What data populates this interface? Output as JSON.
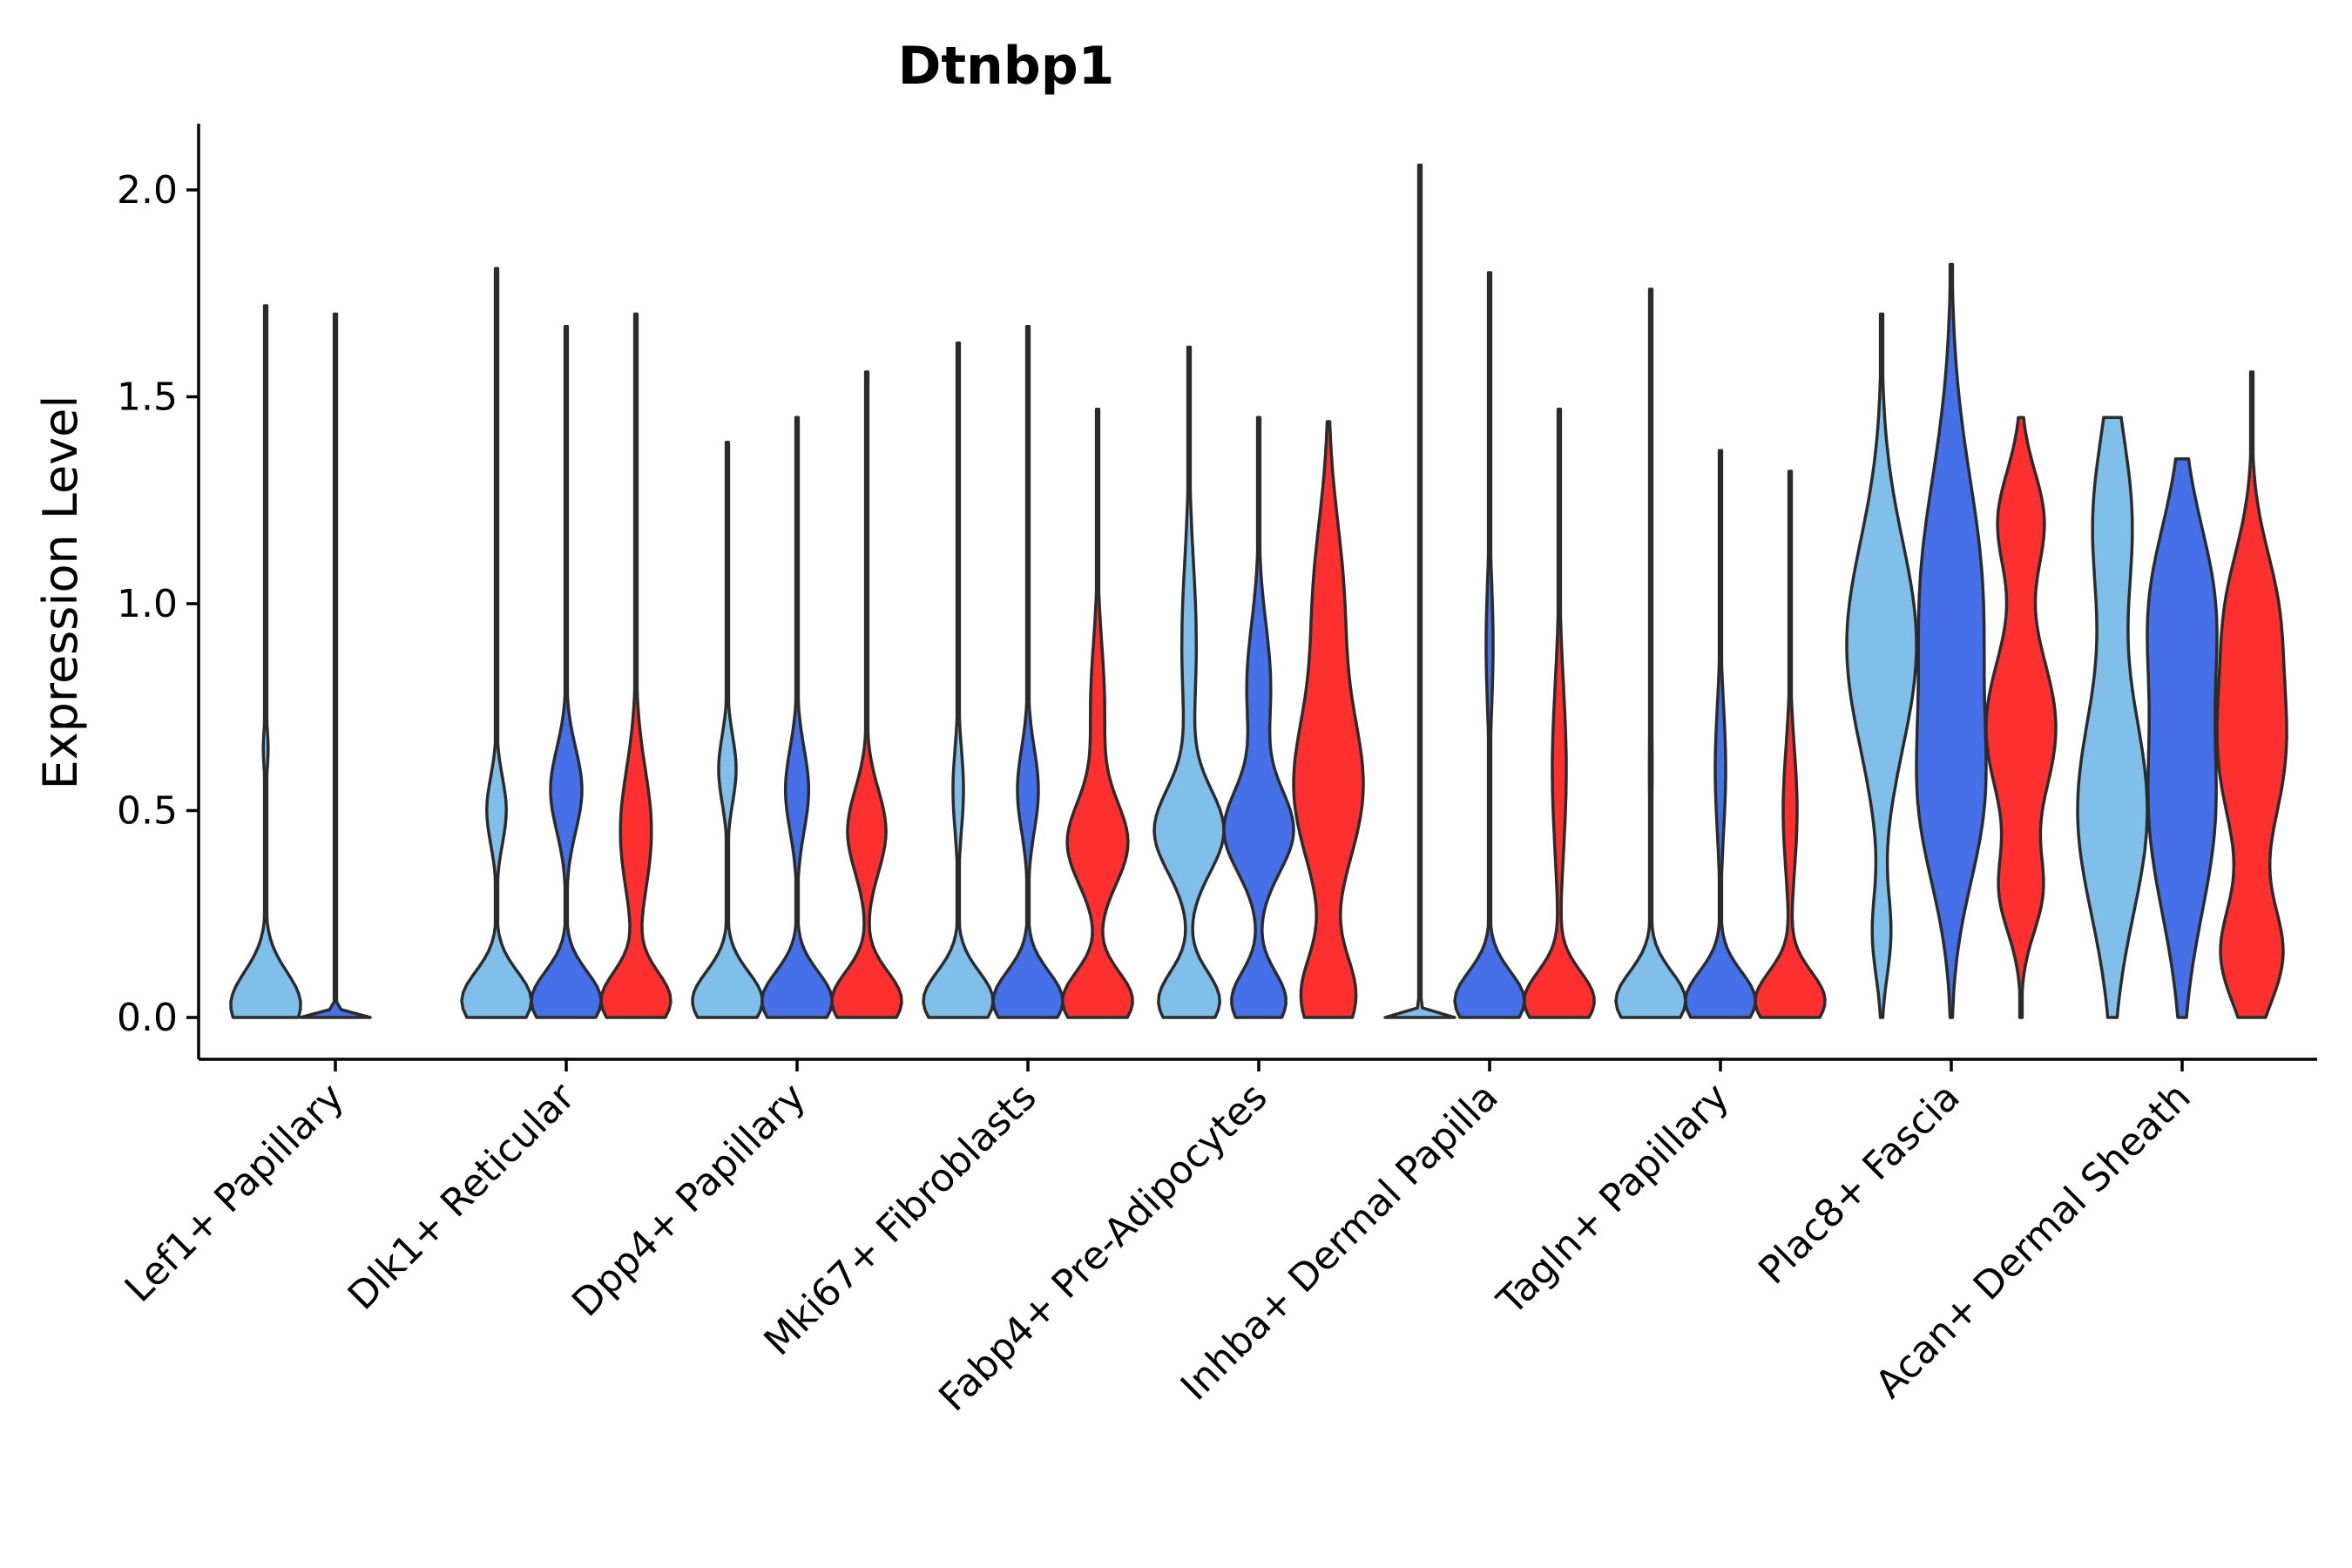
{
  "chart_data": {
    "type": "violin",
    "title": "Dtnbp1",
    "xlabel": "",
    "ylabel": "Expression Level",
    "ylim": [
      -0.1,
      2.15
    ],
    "yticks": [
      "0.0",
      "0.5",
      "1.0",
      "1.5",
      "2.0"
    ],
    "ytick_values": [
      0.0,
      0.5,
      1.0,
      1.5,
      2.0
    ],
    "categories": [
      "Lef1+ Papillary",
      "Dlk1+ Reticular",
      "Dpp4+ Papillary",
      "Mki67+ Fibroblasts",
      "Fabp4+ Pre-Adipocytes",
      "Inhba+ Dermal Papilla",
      "Tagln+ Papillary",
      "Plac8+ Fascia",
      "Acan+ Dermal Sheath"
    ],
    "series_colors": [
      "#7fbfea",
      "#4570e8",
      "#fd2f2f"
    ],
    "violins": [
      {
        "category": "Lef1+ Papillary",
        "sub": 0,
        "max": 1.72,
        "peaks": [
          [
            0.03,
            1.0,
            0.08
          ],
          [
            0.65,
            0.07,
            0.05
          ]
        ]
      },
      {
        "category": "Lef1+ Papillary",
        "sub": 1,
        "max": 1.7,
        "peaks": [
          [
            0.0,
            1.0,
            0.01
          ]
        ]
      },
      {
        "category": "Dlk1+ Reticular",
        "sub": 0,
        "max": 1.81,
        "peaks": [
          [
            0.04,
            1.0,
            0.07
          ],
          [
            0.5,
            0.28,
            0.08
          ]
        ]
      },
      {
        "category": "Dlk1+ Reticular",
        "sub": 1,
        "max": 1.67,
        "peaks": [
          [
            0.04,
            1.0,
            0.07
          ],
          [
            0.55,
            0.45,
            0.1
          ]
        ]
      },
      {
        "category": "Dlk1+ Reticular",
        "sub": 2,
        "max": 1.7,
        "peaks": [
          [
            0.04,
            1.0,
            0.07
          ],
          [
            0.45,
            0.45,
            0.15
          ]
        ]
      },
      {
        "category": "Dpp4+ Papillary",
        "sub": 0,
        "max": 1.39,
        "peaks": [
          [
            0.04,
            1.0,
            0.07
          ],
          [
            0.6,
            0.25,
            0.08
          ]
        ]
      },
      {
        "category": "Dpp4+ Papillary",
        "sub": 1,
        "max": 1.45,
        "peaks": [
          [
            0.04,
            1.0,
            0.07
          ],
          [
            0.55,
            0.33,
            0.1
          ]
        ]
      },
      {
        "category": "Dpp4+ Papillary",
        "sub": 2,
        "max": 1.56,
        "peaks": [
          [
            0.04,
            1.0,
            0.07
          ],
          [
            0.45,
            0.55,
            0.1
          ]
        ]
      },
      {
        "category": "Mki67+ Fibroblasts",
        "sub": 0,
        "max": 1.63,
        "peaks": [
          [
            0.04,
            1.0,
            0.07
          ],
          [
            0.55,
            0.15,
            0.1
          ]
        ]
      },
      {
        "category": "Mki67+ Fibroblasts",
        "sub": 1,
        "max": 1.67,
        "peaks": [
          [
            0.04,
            1.0,
            0.07
          ],
          [
            0.55,
            0.3,
            0.1
          ]
        ]
      },
      {
        "category": "Mki67+ Fibroblasts",
        "sub": 2,
        "max": 1.47,
        "peaks": [
          [
            0.04,
            1.0,
            0.07
          ],
          [
            0.42,
            0.85,
            0.1
          ],
          [
            0.75,
            0.2,
            0.15
          ]
        ]
      },
      {
        "category": "Fabp4+ Pre-Adipocytes",
        "sub": 0,
        "max": 1.62,
        "peaks": [
          [
            0.04,
            0.85,
            0.07
          ],
          [
            0.45,
            0.95,
            0.1
          ],
          [
            0.9,
            0.2,
            0.2
          ]
        ]
      },
      {
        "category": "Fabp4+ Pre-Adipocytes",
        "sub": 1,
        "max": 1.45,
        "peaks": [
          [
            0.04,
            0.8,
            0.07
          ],
          [
            0.45,
            1.0,
            0.1
          ],
          [
            0.8,
            0.35,
            0.15
          ]
        ]
      },
      {
        "category": "Fabp4+ Pre-Adipocytes",
        "sub": 2,
        "max": 1.44,
        "peaks": [
          [
            0.05,
            0.8,
            0.1
          ],
          [
            0.55,
            1.0,
            0.18
          ],
          [
            1.0,
            0.45,
            0.2
          ]
        ]
      },
      {
        "category": "Inhba+ Dermal Papilla",
        "sub": 0,
        "max": 2.06,
        "peaks": [
          [
            0.0,
            1.0,
            0.01
          ]
        ]
      },
      {
        "category": "Inhba+ Dermal Papilla",
        "sub": 1,
        "max": 1.8,
        "peaks": [
          [
            0.04,
            1.0,
            0.07
          ],
          [
            0.9,
            0.1,
            0.15
          ]
        ]
      },
      {
        "category": "Inhba+ Dermal Papilla",
        "sub": 2,
        "max": 1.47,
        "peaks": [
          [
            0.04,
            1.0,
            0.07
          ],
          [
            0.6,
            0.2,
            0.2
          ]
        ]
      },
      {
        "category": "Tagln+ Papillary",
        "sub": 0,
        "max": 1.76,
        "peaks": [
          [
            0.04,
            1.0,
            0.07
          ],
          [
            0.6,
            0.04,
            0.15
          ]
        ]
      },
      {
        "category": "Tagln+ Papillary",
        "sub": 1,
        "max": 1.37,
        "peaks": [
          [
            0.04,
            1.0,
            0.07
          ],
          [
            0.6,
            0.15,
            0.15
          ]
        ]
      },
      {
        "category": "Tagln+ Papillary",
        "sub": 2,
        "max": 1.32,
        "peaks": [
          [
            0.04,
            1.0,
            0.07
          ],
          [
            0.5,
            0.2,
            0.15
          ]
        ]
      },
      {
        "category": "Plac8+ Fascia",
        "sub": 0,
        "max": 1.7,
        "peaks": [
          [
            0.2,
            0.25,
            0.1
          ],
          [
            0.9,
            1.0,
            0.25
          ]
        ]
      },
      {
        "category": "Plac8+ Fascia",
        "sub": 1,
        "max": 1.82,
        "peaks": [
          [
            0.5,
            0.8,
            0.2
          ],
          [
            1.0,
            1.0,
            0.3
          ]
        ]
      },
      {
        "category": "Plac8+ Fascia",
        "sub": 2,
        "max": 1.45,
        "peaks": [
          [
            0.3,
            0.55,
            0.1
          ],
          [
            0.7,
            1.0,
            0.18
          ],
          [
            1.2,
            0.65,
            0.12
          ]
        ]
      },
      {
        "category": "Acan+ Dermal Sheath",
        "sub": 0,
        "max": 1.45,
        "peaks": [
          [
            0.5,
            1.0,
            0.25
          ],
          [
            1.2,
            0.55,
            0.2
          ]
        ]
      },
      {
        "category": "Acan+ Dermal Sheath",
        "sub": 1,
        "max": 1.35,
        "peaks": [
          [
            0.5,
            1.0,
            0.25
          ],
          [
            1.0,
            0.9,
            0.2
          ]
        ]
      },
      {
        "category": "Acan+ Dermal Sheath",
        "sub": 2,
        "max": 1.56,
        "peaks": [
          [
            0.15,
            0.9,
            0.12
          ],
          [
            0.65,
            1.0,
            0.2
          ],
          [
            1.0,
            0.6,
            0.15
          ]
        ]
      }
    ]
  }
}
